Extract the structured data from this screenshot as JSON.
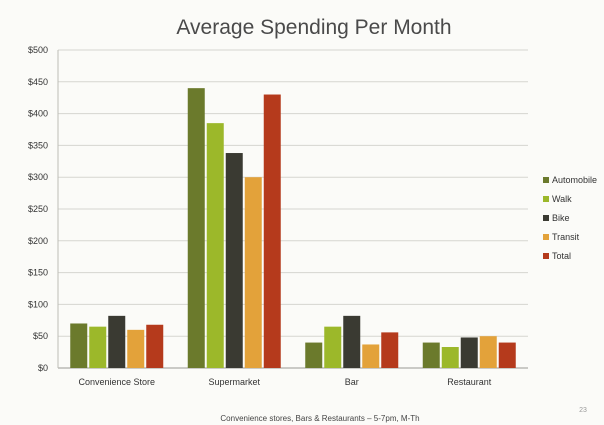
{
  "chart_data": {
    "type": "bar",
    "title": "Average Spending Per Month",
    "categories": [
      "Convenience Store",
      "Supermarket",
      "Bar",
      "Restaurant"
    ],
    "series": [
      {
        "name": "Automobile",
        "color": "#6b7a2c",
        "values": [
          70,
          440,
          40,
          40
        ]
      },
      {
        "name": "Walk",
        "color": "#9cb82a",
        "values": [
          65,
          385,
          65,
          33
        ]
      },
      {
        "name": "Bike",
        "color": "#3a3a32",
        "values": [
          82,
          338,
          82,
          48
        ]
      },
      {
        "name": "Transit",
        "color": "#e3a23a",
        "values": [
          60,
          300,
          37,
          50
        ]
      },
      {
        "name": "Total",
        "color": "#b53a1c",
        "values": [
          68,
          430,
          56,
          40
        ]
      }
    ],
    "ylim": [
      0,
      500
    ],
    "yticks": [
      0,
      50,
      100,
      150,
      200,
      250,
      300,
      350,
      400,
      450,
      500
    ],
    "ytick_labels": [
      "$0",
      "$50",
      "$100",
      "$150",
      "$200",
      "$250",
      "$300",
      "$350",
      "$400",
      "$450",
      "$500"
    ],
    "grid": true,
    "legend_position": "right"
  },
  "footnote": "Convenience stores, Bars & Restaurants – 5-7pm, M-Th",
  "slide_number": "23"
}
